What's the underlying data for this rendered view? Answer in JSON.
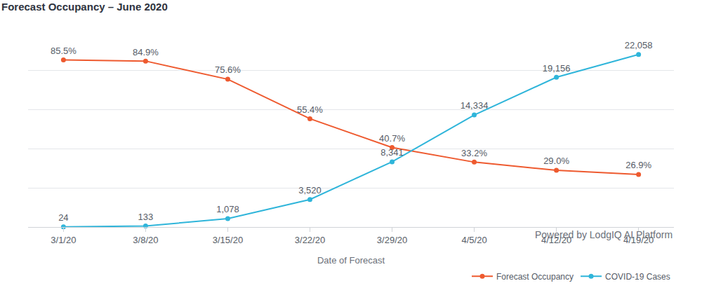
{
  "chart_data": {
    "type": "line",
    "title": "Forecast Occupancy – June 2020",
    "annotations": [
      "Powered by LodgIQ AI Platform"
    ],
    "x_label": "Date of Forecast",
    "categories": [
      "3/1/20",
      "3/8/20",
      "3/15/20",
      "3/22/20",
      "3/29/20",
      "4/5/20",
      "4/12/20",
      "4/19/20"
    ],
    "series": [
      {
        "name": "Forecast Occupancy",
        "color": "#ee5a2f",
        "marker": "circle",
        "values": [
          85.5,
          84.9,
          75.6,
          55.4,
          40.7,
          33.2,
          29.0,
          26.9
        ],
        "value_labels": [
          "85.5%",
          "84.9%",
          "75.6%",
          "55.4%",
          "40.7%",
          "33.2%",
          "29.0%",
          "26.9%"
        ]
      },
      {
        "name": "COVID-19 Cases",
        "color": "#2fb5da",
        "marker": "circle",
        "axis": "y2",
        "values": [
          24,
          133,
          1078,
          3520,
          8341,
          14334,
          19156,
          22058
        ],
        "value_labels": [
          "24",
          "133",
          "1,078",
          "3,520",
          "8,341",
          "14,334",
          "19,156",
          "22,058"
        ]
      }
    ],
    "ylim": [
      0,
      100
    ],
    "yticks": [
      0,
      20,
      40,
      60,
      80,
      100
    ],
    "y2lim": [
      0,
      25000
    ],
    "y2ticks": [
      0,
      5000,
      10000,
      15000,
      20000,
      25000
    ],
    "grid": true,
    "legend": "bottom-right",
    "data_labels": true,
    "tick_labels": "x"
  }
}
